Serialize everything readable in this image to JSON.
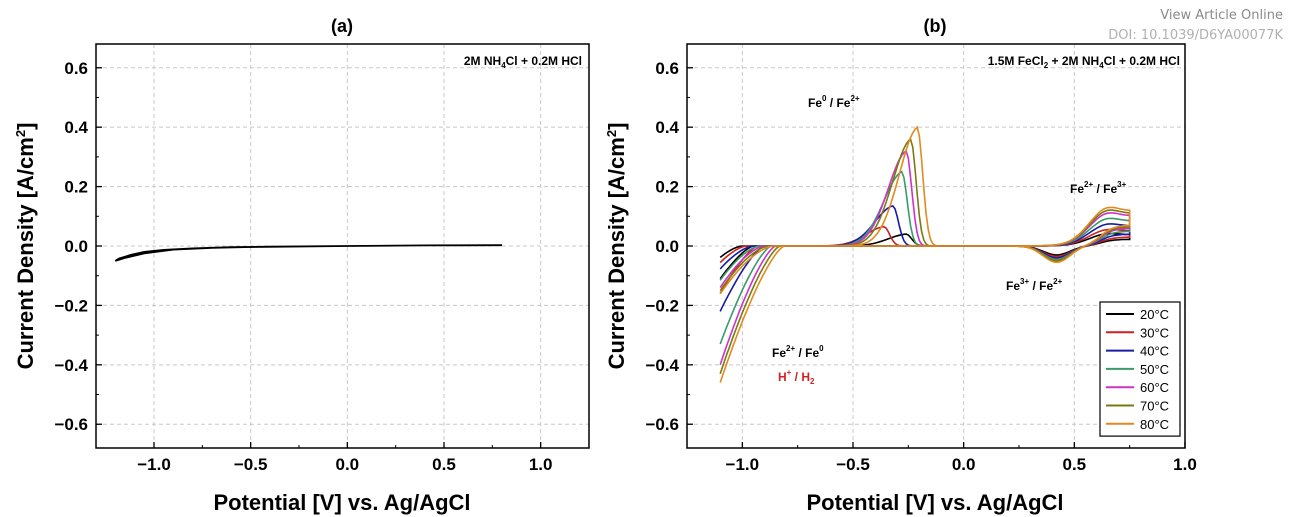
{
  "watermark": {
    "line1": "View Article Online",
    "line2": "DOI: 10.1039/D6YA00077K"
  },
  "chart_data": [
    {
      "panel": "(a)",
      "type": "line",
      "title": "(a)",
      "xlabel": "Potential [V] vs. Ag/AgCl",
      "ylabel": "Current Density [A/cm2]",
      "xlim": [
        -1.3,
        1.25
      ],
      "ylim": [
        -0.68,
        0.68
      ],
      "xticks": [
        -1.0,
        -0.5,
        0.0,
        0.5,
        1.0
      ],
      "xtick_labels": [
        "−1.0",
        "−0.5",
        "0.0",
        "0.5",
        "1.0"
      ],
      "yticks": [
        -0.6,
        -0.4,
        -0.2,
        0.0,
        0.2,
        0.4,
        0.6
      ],
      "ytick_labels": [
        "−0.6",
        "−0.4",
        "−0.2",
        "0.0",
        "0.2",
        "0.4",
        "0.6"
      ],
      "grid": "dashed",
      "annotations": [
        {
          "text": "2M NH4Cl + 0.2M HCl",
          "x": 0.78,
          "y": 0.62
        }
      ],
      "series": [
        {
          "color": "#000000",
          "x": [
            0.8,
            0.4,
            0.0,
            -0.3,
            -0.6,
            -0.8,
            -0.95,
            -1.05,
            -1.12,
            -1.18,
            -1.2,
            -1.15,
            -1.05,
            -0.9,
            -0.7,
            -0.4,
            0.0,
            0.4,
            0.8
          ],
          "y": [
            0.002,
            0.002,
            0.0,
            -0.002,
            -0.004,
            -0.008,
            -0.013,
            -0.02,
            -0.03,
            -0.042,
            -0.05,
            -0.04,
            -0.025,
            -0.012,
            -0.006,
            -0.002,
            0.0,
            0.002,
            0.003
          ]
        }
      ]
    },
    {
      "panel": "(b)",
      "type": "line",
      "title": "(b)",
      "xlabel": "Potential [V] vs. Ag/AgCl",
      "ylabel": "Current Density [A/cm2]",
      "xlim": [
        -1.25,
        1.0
      ],
      "ylim": [
        -0.68,
        0.68
      ],
      "xticks": [
        -1.0,
        -0.5,
        0.0,
        0.5,
        1.0
      ],
      "xtick_labels": [
        "−1.0",
        "−0.5",
        "0.0",
        "0.5",
        "1.0"
      ],
      "yticks": [
        -0.6,
        -0.4,
        -0.2,
        0.0,
        0.2,
        0.4,
        0.6
      ],
      "ytick_labels": [
        "−0.6",
        "−0.4",
        "−0.2",
        "0.0",
        "0.2",
        "0.4",
        "0.6"
      ],
      "grid": "dashed",
      "legend": "bottom-right",
      "annotations": [
        {
          "text": "1.5M FeCl2 + 2M NH4Cl + 0.2M HCl"
        },
        {
          "text": "Fe0 / Fe2+"
        },
        {
          "text": "Fe2+ / Fe3+"
        },
        {
          "text": "Fe3+ / Fe2+"
        },
        {
          "text": "Fe2+ / Fe0"
        },
        {
          "text": "H+ / H2"
        }
      ],
      "series": [
        {
          "name": "20°C",
          "color": "#000000",
          "T": 20,
          "cathodic_min": -0.11,
          "anodic_peak": 0.04,
          "peak_pos": -0.26,
          "redox_ox": 0.045,
          "redox_red": -0.03,
          "onset": -1.0
        },
        {
          "name": "30°C",
          "color": "#cc2020",
          "T": 30,
          "cathodic_min": -0.16,
          "anodic_peak": 0.065,
          "peak_pos": -0.36,
          "redox_ox": 0.06,
          "redox_red": -0.035,
          "onset": -0.98
        },
        {
          "name": "40°C",
          "color": "#1a1aa8",
          "T": 40,
          "cathodic_min": -0.22,
          "anodic_peak": 0.135,
          "peak_pos": -0.32,
          "redox_ox": 0.08,
          "redox_red": -0.04,
          "onset": -0.95
        },
        {
          "name": "50°C",
          "color": "#3a9a6a",
          "T": 50,
          "cathodic_min": -0.33,
          "anodic_peak": 0.25,
          "peak_pos": -0.28,
          "redox_ox": 0.1,
          "redox_red": -0.045,
          "onset": -0.92
        },
        {
          "name": "60°C",
          "color": "#cc33cc",
          "T": 60,
          "cathodic_min": -0.4,
          "anodic_peak": 0.32,
          "peak_pos": -0.26,
          "redox_ox": 0.12,
          "redox_red": -0.05,
          "onset": -0.9
        },
        {
          "name": "70°C",
          "color": "#7a7a10",
          "T": 70,
          "cathodic_min": -0.43,
          "anodic_peak": 0.36,
          "peak_pos": -0.24,
          "redox_ox": 0.13,
          "redox_red": -0.05,
          "onset": -0.88
        },
        {
          "name": "80°C",
          "color": "#e08a20",
          "T": 80,
          "cathodic_min": -0.46,
          "anodic_peak": 0.4,
          "peak_pos": -0.21,
          "redox_ox": 0.14,
          "redox_red": -0.055,
          "onset": -0.86
        }
      ]
    }
  ]
}
